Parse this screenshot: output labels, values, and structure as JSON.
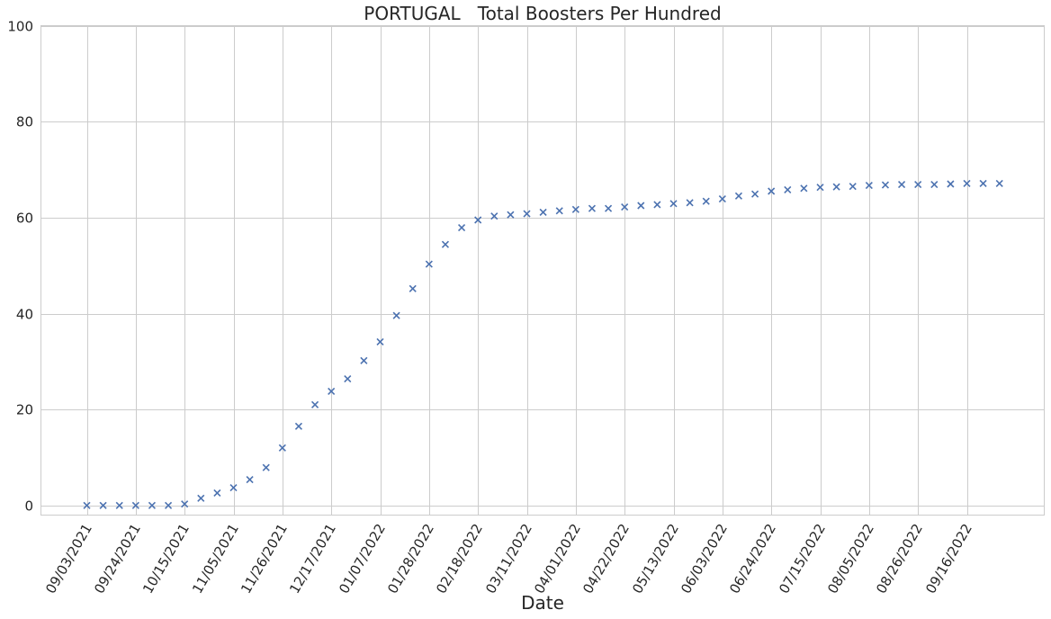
{
  "chart_data": {
    "type": "scatter",
    "title": "PORTUGAL   Total Boosters Per Hundred",
    "xlabel": "Date",
    "ylabel": "",
    "ylim": [
      -2,
      100
    ],
    "y_ticks": [
      0,
      20,
      40,
      60,
      80,
      100
    ],
    "x_ticks": [
      "09/03/2021",
      "09/24/2021",
      "10/15/2021",
      "11/05/2021",
      "11/26/2021",
      "12/17/2021",
      "01/07/2022",
      "01/28/2022",
      "02/18/2022",
      "03/11/2022",
      "04/01/2022",
      "04/22/2022",
      "05/13/2022",
      "06/03/2022",
      "06/24/2022",
      "07/15/2022",
      "08/05/2022",
      "08/26/2022",
      "09/16/2022"
    ],
    "x_tick_rotation": 60,
    "marker": "x",
    "marker_color": "#4c72b0",
    "grid": true,
    "x": [
      "09/03/2021",
      "09/10/2021",
      "09/17/2021",
      "09/24/2021",
      "10/01/2021",
      "10/08/2021",
      "10/15/2021",
      "10/22/2021",
      "10/29/2021",
      "11/05/2021",
      "11/12/2021",
      "11/19/2021",
      "11/26/2021",
      "12/03/2021",
      "12/10/2021",
      "12/17/2021",
      "12/24/2021",
      "12/31/2021",
      "01/07/2022",
      "01/14/2022",
      "01/21/2022",
      "01/28/2022",
      "02/04/2022",
      "02/11/2022",
      "02/18/2022",
      "02/25/2022",
      "03/04/2022",
      "03/11/2022",
      "03/18/2022",
      "03/25/2022",
      "04/01/2022",
      "04/08/2022",
      "04/15/2022",
      "04/22/2022",
      "04/29/2022",
      "05/06/2022",
      "05/13/2022",
      "05/20/2022",
      "05/27/2022",
      "06/03/2022",
      "06/10/2022",
      "06/17/2022",
      "06/24/2022",
      "07/01/2022",
      "07/08/2022",
      "07/15/2022",
      "07/22/2022",
      "07/29/2022",
      "08/05/2022",
      "08/12/2022",
      "08/19/2022",
      "08/26/2022",
      "09/02/2022",
      "09/09/2022",
      "09/16/2022",
      "09/23/2022",
      "09/30/2022"
    ],
    "y": [
      0.0,
      0.0,
      0.0,
      0.0,
      0.0,
      0.0,
      0.3,
      1.5,
      2.6,
      3.7,
      5.4,
      7.9,
      12.0,
      16.5,
      21.0,
      23.8,
      26.4,
      30.2,
      34.1,
      39.6,
      45.2,
      50.3,
      54.4,
      57.9,
      59.5,
      60.3,
      60.6,
      60.8,
      61.1,
      61.4,
      61.7,
      61.9,
      61.9,
      62.2,
      62.5,
      62.7,
      62.9,
      63.1,
      63.4,
      63.9,
      64.5,
      64.9,
      65.5,
      65.8,
      66.1,
      66.3,
      66.4,
      66.5,
      66.7,
      66.8,
      66.9,
      66.9,
      66.9,
      67.0,
      67.1,
      67.1,
      67.1
    ]
  }
}
